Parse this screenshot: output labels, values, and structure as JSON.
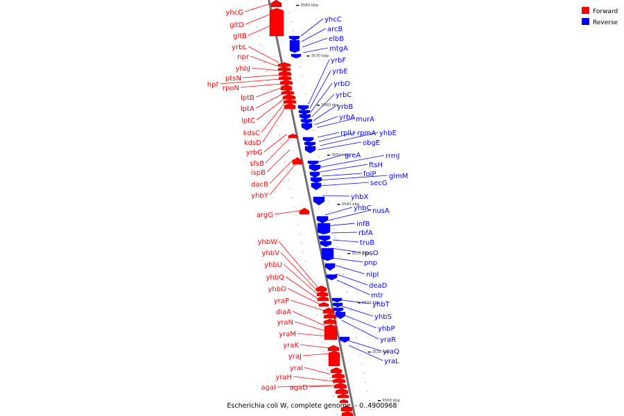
{
  "caption": "Escherichia coli W, complete genome. - 0..4900968",
  "legend": {
    "forward": {
      "label": "Forward",
      "color": "#ff0000"
    },
    "reverse": {
      "label": "Reverse",
      "color": "#0000ff"
    }
  },
  "colors": {
    "axis": "#808080",
    "forward": "#ff0000",
    "reverse": "#0000ff",
    "tick": "#000000"
  },
  "ticks": [
    "3580 kbp",
    "3570 kbp",
    "3560 kbp",
    "3550 kbp",
    "3540 kbp",
    "3530 kbp",
    "3520 kbp",
    "3510 kbp",
    "3500 kbp"
  ],
  "forward_genes": [
    "yhcG",
    "gltD",
    "gltB",
    "yrbL",
    "npr",
    "yhbJ",
    "ptsN",
    "hpf",
    "rpoN",
    "lptB",
    "lptA",
    "lptC",
    "kdsC",
    "kdsD",
    "yrbG",
    "sfsB",
    "ispB",
    "dacB",
    "yhbY",
    "argG",
    "yhbW",
    "yhbV",
    "yhbU",
    "yhbQ",
    "yhbO",
    "yraP",
    "diaA",
    "yraN",
    "yraM",
    "yraK",
    "yraJ",
    "yraI",
    "yraH",
    "agaI",
    "agaD"
  ],
  "reverse_genes": [
    "yhcC",
    "arcB",
    "elbB",
    "mtgA",
    "yrbF",
    "yrbE",
    "yrbD",
    "yrbC",
    "yrbB",
    "yrbA",
    "murA",
    "rplU",
    "rpmA",
    "yhbE",
    "obgE",
    "greA",
    "rrmJ",
    "ftsH",
    "folP",
    "glmM",
    "secG",
    "yhbX",
    "yhbC",
    "nusA",
    "infB",
    "rbfA",
    "truB",
    "rpsO",
    "pnp",
    "nlpI",
    "deaD",
    "mtr",
    "yhbT",
    "yhbS",
    "yhbP",
    "yraR",
    "yraQ",
    "yraL"
  ]
}
